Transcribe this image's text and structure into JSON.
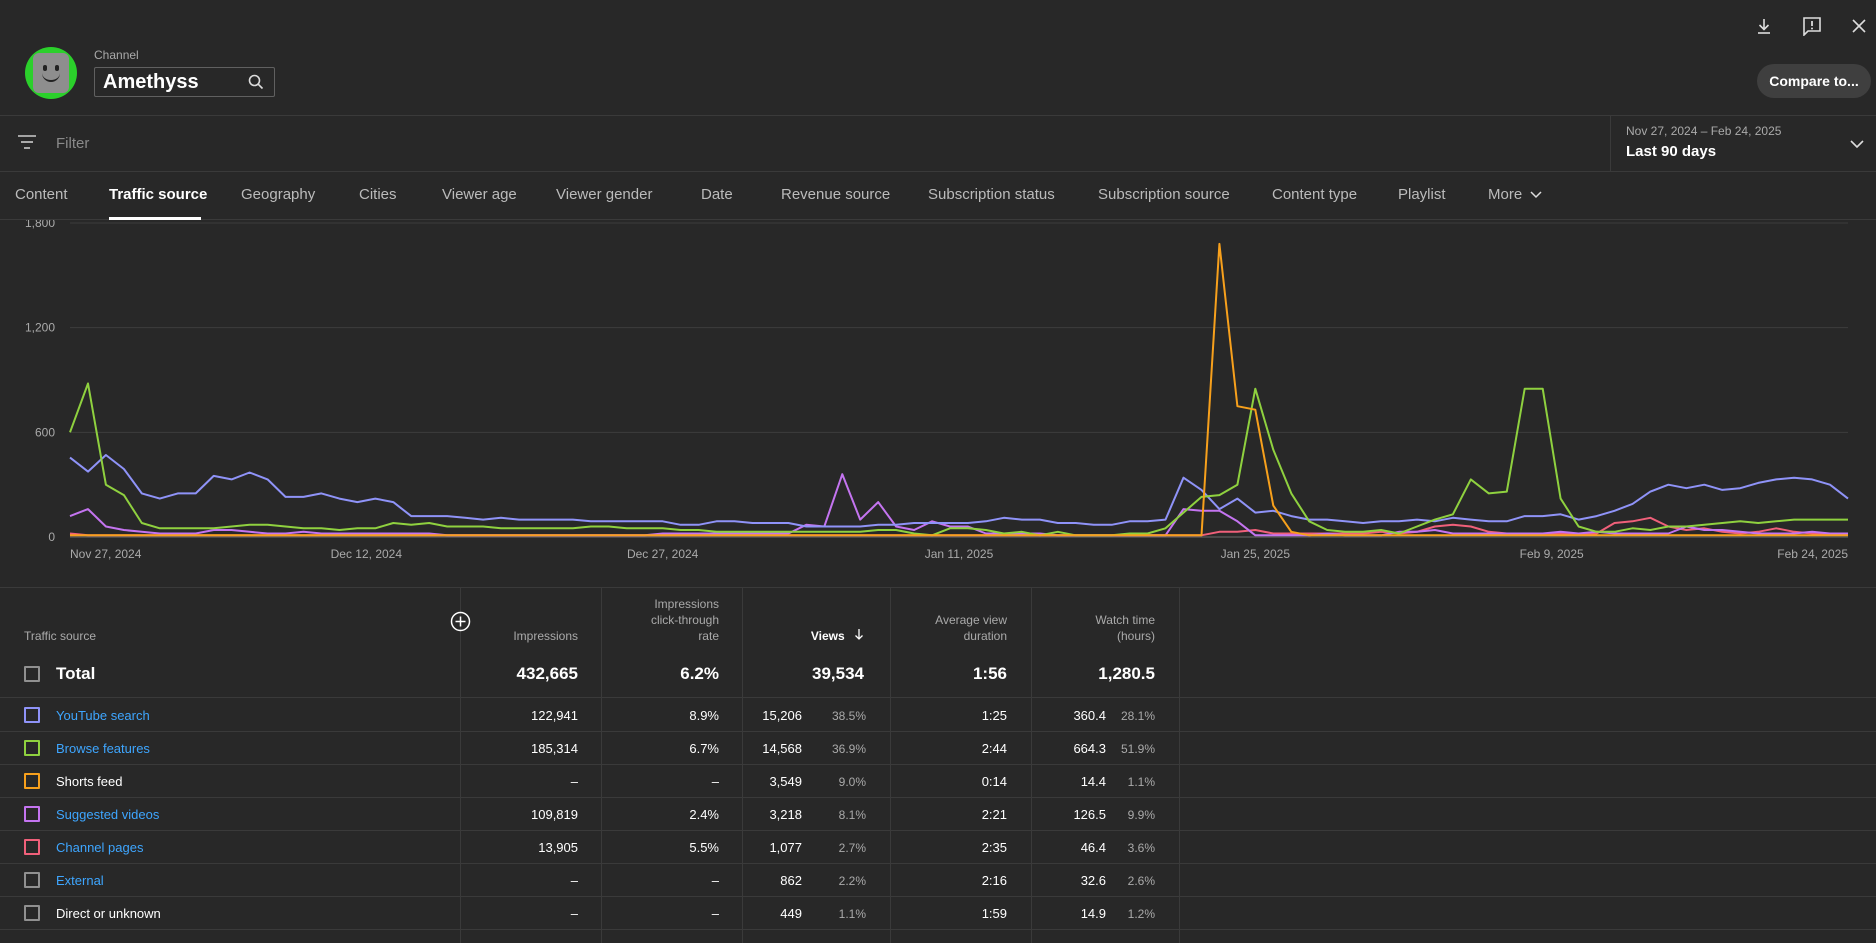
{
  "channel": {
    "label": "Channel",
    "name": "Amethyss"
  },
  "header": {
    "compare_label": "Compare to..."
  },
  "filter": {
    "placeholder": "Filter"
  },
  "date_range": {
    "dates": "Nov 27, 2024 – Feb 24, 2025",
    "period": "Last 90 days"
  },
  "tabs": [
    "Content",
    "Traffic source",
    "Geography",
    "Cities",
    "Viewer age",
    "Viewer gender",
    "Date",
    "Revenue source",
    "Subscription status",
    "Subscription source",
    "Content type",
    "Playlist",
    "More"
  ],
  "active_tab": "Traffic source",
  "chart_data": {
    "type": "line",
    "x_labels": [
      "Nov 27, 2024",
      "Dec 12, 2024",
      "Dec 27, 2024",
      "Jan 11, 2025",
      "Jan 25, 2025",
      "Feb 9, 2025",
      "Feb 24, 2025"
    ],
    "y_ticks": [
      "0",
      "600",
      "1,200",
      "1,800"
    ],
    "ylim": [
      0,
      1800
    ],
    "grid": true,
    "series": [
      {
        "name": "YouTube search",
        "color": "#8f93f8",
        "values": [
          455,
          375,
          470,
          390,
          250,
          220,
          250,
          250,
          350,
          330,
          370,
          330,
          230,
          230,
          250,
          220,
          200,
          220,
          200,
          120,
          120,
          120,
          110,
          100,
          110,
          100,
          100,
          100,
          100,
          90,
          90,
          90,
          90,
          90,
          70,
          70,
          90,
          90,
          80,
          80,
          80,
          60,
          60,
          60,
          60,
          70,
          70,
          80,
          80,
          80,
          80,
          90,
          110,
          100,
          100,
          80,
          80,
          70,
          70,
          90,
          90,
          100,
          340,
          270,
          160,
          220,
          140,
          150,
          120,
          100,
          100,
          90,
          80,
          90,
          90,
          100,
          90,
          110,
          100,
          90,
          90,
          120,
          120,
          130,
          100,
          120,
          150,
          190,
          260,
          300,
          280,
          300,
          270,
          280,
          310,
          330,
          340,
          330,
          300,
          220
        ]
      },
      {
        "name": "Browse features",
        "color": "#8fd13f",
        "values": [
          600,
          880,
          300,
          240,
          80,
          50,
          50,
          50,
          50,
          60,
          70,
          70,
          60,
          50,
          50,
          40,
          50,
          50,
          80,
          70,
          80,
          60,
          60,
          60,
          50,
          50,
          50,
          50,
          50,
          60,
          60,
          50,
          50,
          50,
          40,
          40,
          30,
          30,
          30,
          30,
          30,
          30,
          30,
          30,
          30,
          40,
          40,
          20,
          10,
          50,
          50,
          40,
          20,
          30,
          10,
          30,
          10,
          10,
          10,
          20,
          20,
          50,
          140,
          230,
          240,
          300,
          850,
          500,
          250,
          90,
          40,
          30,
          30,
          40,
          20,
          60,
          100,
          130,
          330,
          250,
          260,
          850,
          850,
          220,
          60,
          30,
          30,
          50,
          40,
          60,
          60,
          70,
          80,
          90,
          80,
          90,
          100,
          100,
          100,
          100
        ]
      },
      {
        "name": "Shorts feed",
        "color": "#f7a01c",
        "values": [
          10,
          10,
          10,
          10,
          10,
          10,
          10,
          10,
          10,
          10,
          10,
          10,
          10,
          10,
          10,
          10,
          10,
          10,
          10,
          10,
          10,
          10,
          10,
          10,
          10,
          10,
          10,
          10,
          10,
          10,
          10,
          10,
          10,
          10,
          10,
          10,
          10,
          10,
          10,
          10,
          10,
          10,
          10,
          10,
          10,
          10,
          10,
          10,
          10,
          10,
          10,
          10,
          10,
          10,
          10,
          10,
          10,
          10,
          10,
          10,
          10,
          10,
          10,
          10,
          1680,
          750,
          730,
          180,
          30,
          10,
          10,
          10,
          10,
          10,
          10,
          10,
          10,
          10,
          10,
          10,
          10,
          10,
          10,
          10,
          10,
          10,
          10,
          10,
          10,
          10,
          10,
          10,
          10,
          10,
          10,
          10,
          10,
          10,
          10,
          10
        ]
      },
      {
        "name": "Suggested videos",
        "color": "#c474f0",
        "values": [
          120,
          160,
          60,
          40,
          30,
          20,
          20,
          20,
          40,
          40,
          30,
          20,
          20,
          30,
          20,
          20,
          20,
          20,
          20,
          20,
          20,
          10,
          10,
          10,
          10,
          10,
          10,
          10,
          10,
          10,
          10,
          10,
          10,
          20,
          20,
          20,
          20,
          20,
          20,
          20,
          20,
          70,
          60,
          360,
          100,
          200,
          60,
          40,
          90,
          60,
          60,
          20,
          20,
          20,
          20,
          10,
          10,
          10,
          10,
          10,
          10,
          10,
          160,
          150,
          150,
          90,
          10,
          10,
          10,
          10,
          20,
          10,
          10,
          10,
          30,
          30,
          40,
          20,
          20,
          20,
          20,
          20,
          20,
          30,
          20,
          30,
          20,
          20,
          20,
          20,
          60,
          40,
          40,
          30,
          20,
          20,
          20,
          30,
          20,
          20
        ]
      },
      {
        "name": "Channel pages",
        "color": "#f0607a",
        "values": [
          20,
          10,
          10,
          10,
          10,
          10,
          10,
          10,
          10,
          10,
          10,
          10,
          10,
          10,
          10,
          10,
          10,
          10,
          10,
          10,
          10,
          10,
          10,
          10,
          10,
          10,
          10,
          10,
          10,
          10,
          10,
          10,
          10,
          10,
          10,
          10,
          10,
          10,
          10,
          10,
          10,
          10,
          10,
          10,
          10,
          10,
          10,
          10,
          10,
          10,
          10,
          10,
          10,
          10,
          10,
          10,
          10,
          10,
          10,
          10,
          10,
          10,
          10,
          10,
          30,
          30,
          40,
          20,
          20,
          20,
          20,
          20,
          20,
          30,
          20,
          30,
          60,
          70,
          60,
          30,
          20,
          20,
          20,
          20,
          20,
          20,
          80,
          90,
          110,
          60,
          40,
          50,
          30,
          20,
          30,
          50,
          30,
          20,
          20,
          20
        ]
      }
    ]
  },
  "table": {
    "headers": {
      "source": "Traffic source",
      "impressions": "Impressions",
      "ctr": [
        "Impressions",
        "click-through",
        "rate"
      ],
      "views": "Views",
      "avd": [
        "Average view",
        "duration"
      ],
      "watch": [
        "Watch time",
        "(hours)"
      ]
    },
    "total": {
      "label": "Total",
      "impressions": "432,665",
      "ctr": "6.2%",
      "views": "39,534",
      "avd": "1:56",
      "watch": "1,280.5"
    },
    "rows": [
      {
        "label": "YouTube search",
        "link": true,
        "color": "#8f93f8",
        "impressions": "122,941",
        "ctr": "8.9%",
        "views": "15,206",
        "views_pct": "38.5%",
        "avd": "1:25",
        "watch": "360.4",
        "watch_pct": "28.1%"
      },
      {
        "label": "Browse features",
        "link": true,
        "color": "#8fd13f",
        "impressions": "185,314",
        "ctr": "6.7%",
        "views": "14,568",
        "views_pct": "36.9%",
        "avd": "2:44",
        "watch": "664.3",
        "watch_pct": "51.9%"
      },
      {
        "label": "Shorts feed",
        "link": false,
        "color": "#f7a01c",
        "impressions": "–",
        "ctr": "–",
        "views": "3,549",
        "views_pct": "9.0%",
        "avd": "0:14",
        "watch": "14.4",
        "watch_pct": "1.1%"
      },
      {
        "label": "Suggested videos",
        "link": true,
        "color": "#c474f0",
        "impressions": "109,819",
        "ctr": "2.4%",
        "views": "3,218",
        "views_pct": "8.1%",
        "avd": "2:21",
        "watch": "126.5",
        "watch_pct": "9.9%"
      },
      {
        "label": "Channel pages",
        "link": true,
        "color": "#f0607a",
        "impressions": "13,905",
        "ctr": "5.5%",
        "views": "1,077",
        "views_pct": "2.7%",
        "avd": "2:35",
        "watch": "46.4",
        "watch_pct": "3.6%"
      },
      {
        "label": "External",
        "link": true,
        "color": "#909090",
        "impressions": "–",
        "ctr": "–",
        "views": "862",
        "views_pct": "2.2%",
        "avd": "2:16",
        "watch": "32.6",
        "watch_pct": "2.6%"
      },
      {
        "label": "Direct or unknown",
        "link": false,
        "color": "#909090",
        "impressions": "–",
        "ctr": "–",
        "views": "449",
        "views_pct": "1.1%",
        "avd": "1:59",
        "watch": "14.9",
        "watch_pct": "1.2%"
      }
    ]
  },
  "colors": {
    "link": "#3ea6ff",
    "background": "#282828",
    "divider": "#3a3a3a"
  }
}
